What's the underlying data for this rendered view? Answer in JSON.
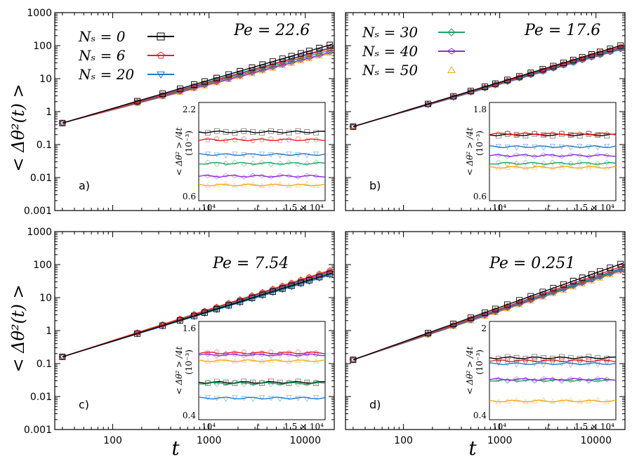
{
  "chart_data": {
    "type": "line",
    "xlabel": "t",
    "ylabel": "< Δθ²(t) >",
    "x_scale": "log",
    "y_scale": "log",
    "xlim": [
      25,
      20000
    ],
    "ylim": [
      0.001,
      1000
    ],
    "x_ticks": [
      "100",
      "1000",
      "10000"
    ],
    "y_ticks": [
      "0.001",
      "0.01",
      "0.1",
      "1",
      "10",
      "100",
      "1000"
    ],
    "legend_left": [
      "N_s = 0",
      "N_s = 6",
      "N_s = 20"
    ],
    "legend_right": [
      "N_s = 30",
      "N_s = 40",
      "N_s = 50"
    ],
    "series_colors": [
      "#000000",
      "#e8201f",
      "#1f78c8",
      "#21a35f",
      "#8a2be2",
      "#f2a81b"
    ],
    "series_markers": [
      "square",
      "pentagon",
      "triangle-down",
      "diamond",
      "diamond-wide",
      "triangle-up"
    ],
    "panels": [
      {
        "label": "a)",
        "pe": "Pe = 22.6",
        "x_start": 30,
        "y_start": 0.45,
        "end_values": [
          110,
          85,
          90,
          75,
          65,
          60
        ],
        "inset": {
          "ylabel": "< Δθ² > /4t",
          "ymul": "(10⁻³)",
          "ymin_label": "0.6",
          "ymax_label": "2.2",
          "xtick1": "10⁴",
          "xlabel": "t",
          "xtick2": "1.5 × 10⁴",
          "levels": [
            0.7,
            0.62,
            0.47,
            0.38,
            0.25,
            0.16
          ]
        }
      },
      {
        "label": "b)",
        "pe": "Pe = 17.6",
        "x_start": 30,
        "y_start": 0.35,
        "end_values": [
          105,
          95,
          90,
          85,
          80,
          85
        ],
        "inset": {
          "ylabel": "< Δθ² > /4t",
          "ymul": "(10⁻³)",
          "ymin_label": "0.6",
          "ymax_label": "1.8",
          "xtick1": "10⁴",
          "xlabel": "t",
          "xtick2": "1.5 × 10⁴",
          "levels": [
            0.67,
            0.68,
            0.55,
            0.38,
            0.46,
            0.34
          ]
        }
      },
      {
        "label": "c)",
        "pe": "Pe = 7.54",
        "x_start": 30,
        "y_start": 0.16,
        "end_values": [
          55,
          70,
          50,
          60,
          65,
          70
        ],
        "inset": {
          "ylabel": "< Δθ² > /4t",
          "ymul": "(10⁻³)",
          "ymin_label": "0.4",
          "ymax_label": "1.6",
          "xtick1": "10⁴",
          "xlabel": "t",
          "xtick2": "1.5 × 10⁴",
          "levels": [
            0.38,
            0.68,
            0.22,
            0.37,
            0.66,
            0.6
          ]
        }
      },
      {
        "label": "d)",
        "pe": "Pe = 0.251",
        "x_start": 30,
        "y_start": 0.13,
        "end_values": [
          110,
          90,
          80,
          75,
          70,
          65
        ],
        "inset": {
          "ylabel": "< Δθ² > /4t",
          "ymul": "(10⁻³)",
          "ymin_label": "0.4",
          "ymax_label": "2",
          "xtick1": "10⁴",
          "xlabel": "t",
          "xtick2": "1.5 × 10⁴",
          "levels": [
            0.63,
            0.6,
            0.57,
            0.4,
            0.41,
            0.19
          ]
        }
      }
    ]
  }
}
